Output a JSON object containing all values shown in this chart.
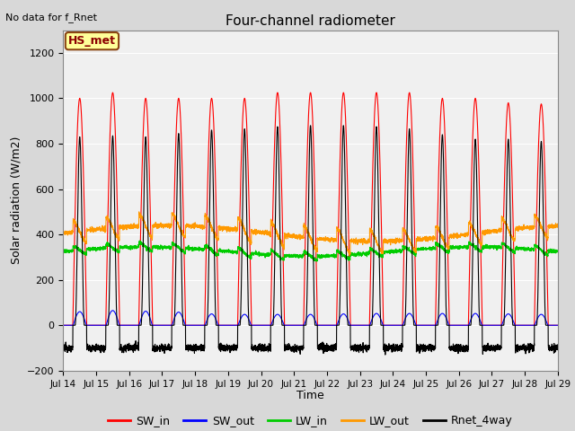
{
  "title": "Four-channel radiometer",
  "top_left_text": "No data for f_Rnet",
  "ylabel": "Solar radiation (W/m2)",
  "xlabel": "Time",
  "annotation_label": "HS_met",
  "ylim": [
    -200,
    1300
  ],
  "yticks": [
    -200,
    0,
    200,
    400,
    600,
    800,
    1000,
    1200
  ],
  "x_tick_labels": [
    "Jul 14",
    "Jul 15",
    "Jul 16",
    "Jul 17",
    "Jul 18",
    "Jul 19",
    "Jul 20",
    "Jul 21",
    "Jul 22",
    "Jul 23",
    "Jul 24",
    "Jul 25",
    "Jul 26",
    "Jul 27",
    "Jul 28",
    "Jul 29"
  ],
  "colors": {
    "SW_in": "#ff0000",
    "SW_out": "#0000ff",
    "LW_in": "#00cc00",
    "LW_out": "#ff9900",
    "Rnet_4way": "#000000"
  },
  "bg_color": "#d8d8d8",
  "plot_bg_color": "#f0f0f0",
  "n_days": 15,
  "pts_per_day": 288
}
